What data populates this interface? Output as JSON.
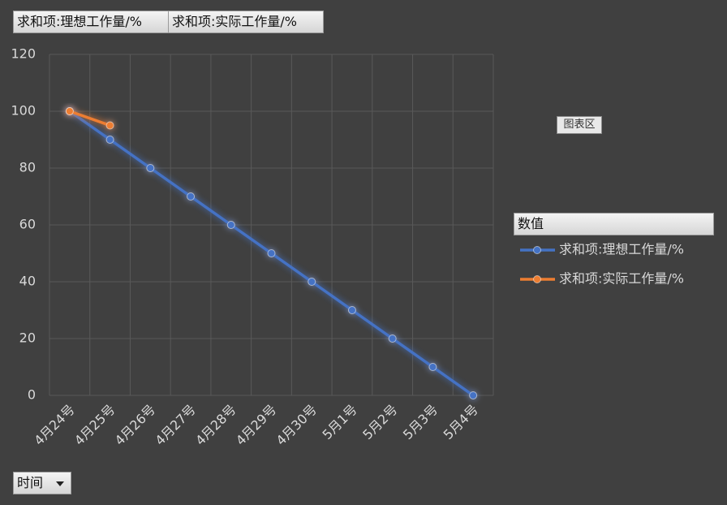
{
  "field_buttons": [
    "求和项:理想工作量/%",
    "求和项:实际工作量/%"
  ],
  "chart_area_tip": "图表区",
  "legend_title": "数值",
  "axis_field_button": "时间",
  "chart_data": {
    "type": "line",
    "categories": [
      "4月24号",
      "4月25号",
      "4月26号",
      "4月27号",
      "4月28号",
      "4月29号",
      "4月30号",
      "5月1号",
      "5月2号",
      "5月3号",
      "5月4号"
    ],
    "series": [
      {
        "name": "求和项:理想工作量/%",
        "color": "#4472c4",
        "values": [
          100,
          90,
          80,
          70,
          60,
          50,
          40,
          30,
          20,
          10,
          0
        ]
      },
      {
        "name": "求和项:实际工作量/%",
        "color": "#ed7d31",
        "values": [
          100,
          95,
          null,
          null,
          null,
          null,
          null,
          null,
          null,
          null,
          null
        ]
      }
    ],
    "ylim": [
      0,
      120
    ],
    "yticks": [
      0,
      20,
      40,
      60,
      80,
      100,
      120
    ],
    "grid": true,
    "legend": "right"
  }
}
